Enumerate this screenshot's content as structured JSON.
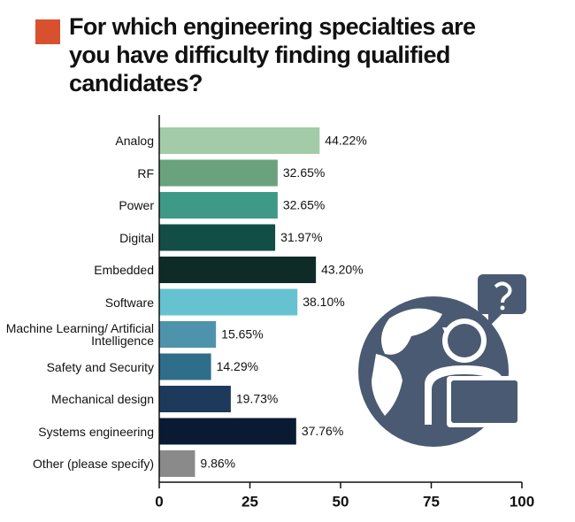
{
  "chart_data": {
    "type": "hbar",
    "title": "For which engineering specialties are you have difficulty finding qualified candidates?",
    "categories": [
      "Analog",
      "RF",
      "Power",
      "Digital",
      "Embedded",
      "Software",
      "Machine Learning/ Artificial Intelligence",
      "Safety and Security",
      "Mechanical design",
      "Systems engineering",
      "Other (please specify)"
    ],
    "values": [
      44.22,
      32.65,
      32.65,
      31.97,
      43.2,
      38.1,
      15.65,
      14.29,
      19.73,
      37.76,
      9.86
    ],
    "value_labels": [
      "44.22%",
      "32.65%",
      "32.65%",
      "31.97%",
      "43.20%",
      "38.10%",
      "15.65%",
      "14.29%",
      "19.73%",
      "37.76%",
      "9.86%"
    ],
    "colors": [
      "#a3cba8",
      "#6aa27e",
      "#3e9a87",
      "#124d46",
      "#0f2b28",
      "#66c2d1",
      "#4e93ab",
      "#2f6e8a",
      "#1d3a5c",
      "#0b1a33",
      "#8a8a8a"
    ],
    "xlim": [
      0,
      100
    ],
    "xticks": [
      0,
      25,
      50,
      75,
      100
    ]
  }
}
